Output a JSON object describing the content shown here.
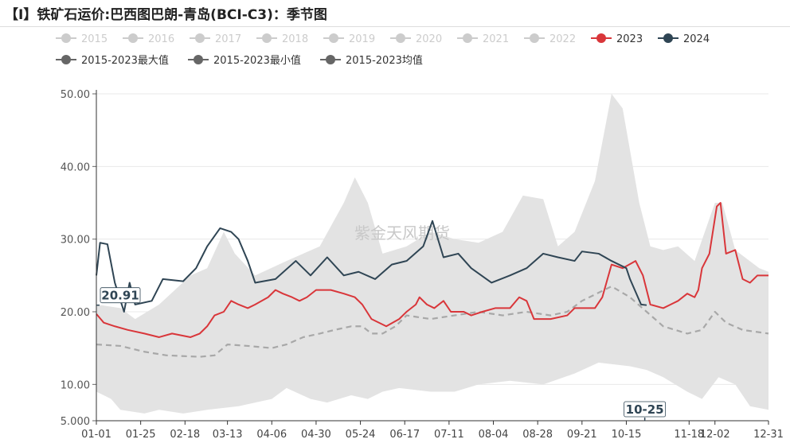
{
  "title": "【I】铁矿石运价:巴西图巴朗-青岛(BCI-C3)：季节图",
  "watermark": "紫金天风期货",
  "colors": {
    "y2023": "#d9363a",
    "y2024": "#2f4554",
    "band": "#e3e3e3",
    "avg": "#a8a8a8",
    "disabled": "#cccccc",
    "stat": "#666666",
    "axis": "#333333",
    "grid": "#e8e8e8"
  },
  "legend": [
    {
      "label": "2015",
      "active": false
    },
    {
      "label": "2016",
      "active": false
    },
    {
      "label": "2017",
      "active": false
    },
    {
      "label": "2018",
      "active": false
    },
    {
      "label": "2019",
      "active": false
    },
    {
      "label": "2020",
      "active": false
    },
    {
      "label": "2021",
      "active": false
    },
    {
      "label": "2022",
      "active": false
    },
    {
      "label": "2023",
      "active": true,
      "color": "#d9363a"
    },
    {
      "label": "2024",
      "active": true,
      "color": "#2f4554"
    },
    {
      "label": "2015-2023最大值",
      "active": true,
      "color": "#666666"
    },
    {
      "label": "2015-2023最小值",
      "active": true,
      "color": "#666666"
    },
    {
      "label": "2015-2023均值",
      "active": true,
      "color": "#666666"
    }
  ],
  "chart_data": {
    "type": "line",
    "title": "【I】铁矿石运价:巴西图巴朗-青岛(BCI-C3)：季节图",
    "ylim": [
      5,
      50
    ],
    "yticks": [
      "5.000",
      "10.00",
      "20.00",
      "30.00",
      "40.00",
      "50.00"
    ],
    "yticks_values": [
      5,
      10,
      20,
      30,
      40,
      50
    ],
    "xticks": [
      "01-01",
      "01-25",
      "02-18",
      "03-13",
      "04-06",
      "04-30",
      "05-24",
      "06-17",
      "07-11",
      "08-04",
      "08-28",
      "09-21",
      "10-15",
      "11-18",
      "12-02",
      "12-31"
    ],
    "highlight_x": "10-25",
    "highlight_y": "20.91",
    "grid": true,
    "legend_position": "top",
    "series": [
      {
        "name": "2015-2023最大值",
        "type": "band-upper",
        "points": [
          [
            "01-01",
            21
          ],
          [
            "01-14",
            20.5
          ],
          [
            "01-22",
            19
          ],
          [
            "02-04",
            21
          ],
          [
            "02-21",
            25
          ],
          [
            "03-02",
            26
          ],
          [
            "03-11",
            31
          ],
          [
            "03-17",
            28
          ],
          [
            "03-28",
            25
          ],
          [
            "04-14",
            27
          ],
          [
            "05-02",
            29
          ],
          [
            "05-15",
            35
          ],
          [
            "05-21",
            38.5
          ],
          [
            "05-28",
            35
          ],
          [
            "06-05",
            28
          ],
          [
            "06-18",
            29
          ],
          [
            "07-01",
            31
          ],
          [
            "07-14",
            30
          ],
          [
            "07-27",
            29.5
          ],
          [
            "08-09",
            31
          ],
          [
            "08-20",
            36
          ],
          [
            "08-31",
            35.5
          ],
          [
            "09-08",
            29
          ],
          [
            "09-17",
            31
          ],
          [
            "09-28",
            38
          ],
          [
            "10-07",
            50
          ],
          [
            "10-13",
            48
          ],
          [
            "10-22",
            35
          ],
          [
            "10-28",
            29
          ],
          [
            "11-04",
            28.5
          ],
          [
            "11-12",
            29
          ],
          [
            "11-21",
            27
          ],
          [
            "12-02",
            35
          ],
          [
            "12-06",
            35
          ],
          [
            "12-13",
            28.5
          ],
          [
            "12-26",
            26
          ],
          [
            "12-31",
            25.5
          ]
        ]
      },
      {
        "name": "2015-2023最小值",
        "type": "band-lower",
        "points": [
          [
            "01-01",
            9
          ],
          [
            "01-09",
            8
          ],
          [
            "01-14",
            6.5
          ],
          [
            "01-27",
            6
          ],
          [
            "02-04",
            6.5
          ],
          [
            "02-17",
            6
          ],
          [
            "03-02",
            6.5
          ],
          [
            "03-19",
            7
          ],
          [
            "04-06",
            8
          ],
          [
            "04-14",
            9.5
          ],
          [
            "04-27",
            8
          ],
          [
            "05-06",
            7.5
          ],
          [
            "05-19",
            8.5
          ],
          [
            "05-28",
            8
          ],
          [
            "06-05",
            9
          ],
          [
            "06-14",
            9.5
          ],
          [
            "07-01",
            9
          ],
          [
            "07-14",
            9
          ],
          [
            "07-27",
            10
          ],
          [
            "08-13",
            10.5
          ],
          [
            "08-31",
            10
          ],
          [
            "09-17",
            11.5
          ],
          [
            "09-30",
            13
          ],
          [
            "10-17",
            12.5
          ],
          [
            "10-26",
            12
          ],
          [
            "11-04",
            11
          ],
          [
            "11-17",
            9
          ],
          [
            "11-25",
            8
          ],
          [
            "12-04",
            11
          ],
          [
            "12-13",
            10
          ],
          [
            "12-21",
            7
          ],
          [
            "12-31",
            6.5
          ]
        ]
      },
      {
        "name": "2015-2023均值",
        "type": "dashed",
        "points": [
          [
            "01-01",
            15.5
          ],
          [
            "01-14",
            15.3
          ],
          [
            "01-27",
            14.5
          ],
          [
            "02-08",
            14
          ],
          [
            "02-26",
            13.8
          ],
          [
            "03-06",
            14
          ],
          [
            "03-13",
            15.5
          ],
          [
            "03-24",
            15.3
          ],
          [
            "04-06",
            15
          ],
          [
            "04-14",
            15.5
          ],
          [
            "04-23",
            16.5
          ],
          [
            "05-02",
            17
          ],
          [
            "05-10",
            17.5
          ],
          [
            "05-19",
            18
          ],
          [
            "05-25",
            18
          ],
          [
            "05-30",
            17
          ],
          [
            "06-05",
            17
          ],
          [
            "06-12",
            18
          ],
          [
            "06-18",
            19.5
          ],
          [
            "07-01",
            19
          ],
          [
            "07-14",
            19.5
          ],
          [
            "07-27",
            20
          ],
          [
            "08-09",
            19.5
          ],
          [
            "08-22",
            20
          ],
          [
            "09-04",
            19.5
          ],
          [
            "09-13",
            20
          ],
          [
            "09-21",
            21.5
          ],
          [
            "10-07",
            23.5
          ],
          [
            "10-17",
            22
          ],
          [
            "10-26",
            20
          ],
          [
            "11-04",
            18
          ],
          [
            "11-17",
            17
          ],
          [
            "11-25",
            17.5
          ],
          [
            "12-02",
            20
          ],
          [
            "12-08",
            18.5
          ],
          [
            "12-17",
            17.5
          ],
          [
            "12-31",
            17
          ]
        ]
      },
      {
        "name": "2023",
        "points": [
          [
            "01-01",
            19.7
          ],
          [
            "01-05",
            18.5
          ],
          [
            "01-11",
            18
          ],
          [
            "01-18",
            17.5
          ],
          [
            "01-27",
            17
          ],
          [
            "02-04",
            16.5
          ],
          [
            "02-11",
            17
          ],
          [
            "02-21",
            16.5
          ],
          [
            "02-26",
            17
          ],
          [
            "03-02",
            18
          ],
          [
            "03-06",
            19.5
          ],
          [
            "03-11",
            20
          ],
          [
            "03-15",
            21.5
          ],
          [
            "03-19",
            21
          ],
          [
            "03-24",
            20.5
          ],
          [
            "03-28",
            21
          ],
          [
            "04-04",
            22
          ],
          [
            "04-08",
            23
          ],
          [
            "04-12",
            22.5
          ],
          [
            "04-17",
            22
          ],
          [
            "04-21",
            21.5
          ],
          [
            "04-25",
            22
          ],
          [
            "04-30",
            23
          ],
          [
            "05-08",
            23
          ],
          [
            "05-15",
            22.5
          ],
          [
            "05-21",
            22
          ],
          [
            "05-25",
            21
          ],
          [
            "05-30",
            19
          ],
          [
            "06-07",
            18
          ],
          [
            "06-14",
            19
          ],
          [
            "06-18",
            20
          ],
          [
            "06-23",
            21
          ],
          [
            "06-25",
            22
          ],
          [
            "06-29",
            21
          ],
          [
            "07-03",
            20.5
          ],
          [
            "07-08",
            21.5
          ],
          [
            "07-12",
            20
          ],
          [
            "07-19",
            20
          ],
          [
            "07-23",
            19.5
          ],
          [
            "07-29",
            20
          ],
          [
            "08-05",
            20.5
          ],
          [
            "08-13",
            20.5
          ],
          [
            "08-18",
            22
          ],
          [
            "08-22",
            21.5
          ],
          [
            "08-26",
            19
          ],
          [
            "09-04",
            19
          ],
          [
            "09-13",
            19.5
          ],
          [
            "09-17",
            20.5
          ],
          [
            "09-28",
            20.5
          ],
          [
            "10-02",
            22
          ],
          [
            "10-07",
            26.5
          ],
          [
            "10-13",
            26
          ],
          [
            "10-20",
            27
          ],
          [
            "10-24",
            25
          ],
          [
            "10-28",
            21
          ],
          [
            "11-04",
            20.5
          ],
          [
            "11-08",
            21
          ],
          [
            "11-12",
            21.5
          ],
          [
            "11-17",
            22.5
          ],
          [
            "11-21",
            22
          ],
          [
            "11-23",
            23
          ],
          [
            "11-25",
            26
          ],
          [
            "11-29",
            28
          ],
          [
            "12-03",
            34.5
          ],
          [
            "12-05",
            35
          ],
          [
            "12-08",
            28
          ],
          [
            "12-13",
            28.5
          ],
          [
            "12-17",
            24.5
          ],
          [
            "12-21",
            24
          ],
          [
            "12-25",
            25
          ],
          [
            "12-31",
            25
          ]
        ]
      },
      {
        "name": "2024",
        "points": [
          [
            "01-01",
            25
          ],
          [
            "01-03",
            29.5
          ],
          [
            "01-07",
            29.3
          ],
          [
            "01-11",
            24
          ],
          [
            "01-16",
            20
          ],
          [
            "01-19",
            24
          ],
          [
            "01-22",
            21
          ],
          [
            "01-31",
            21.5
          ],
          [
            "02-06",
            24.5
          ],
          [
            "02-17",
            24.2
          ],
          [
            "02-24",
            26
          ],
          [
            "03-02",
            29
          ],
          [
            "03-09",
            31.5
          ],
          [
            "03-15",
            31
          ],
          [
            "03-19",
            30
          ],
          [
            "03-24",
            27
          ],
          [
            "03-28",
            24
          ],
          [
            "04-08",
            24.5
          ],
          [
            "04-19",
            27
          ],
          [
            "04-27",
            25
          ],
          [
            "05-06",
            27.5
          ],
          [
            "05-15",
            25
          ],
          [
            "05-23",
            25.5
          ],
          [
            "06-01",
            24.5
          ],
          [
            "06-10",
            26.5
          ],
          [
            "06-18",
            27
          ],
          [
            "06-27",
            29
          ],
          [
            "07-02",
            32.5
          ],
          [
            "07-08",
            27.5
          ],
          [
            "07-16",
            28
          ],
          [
            "07-23",
            26
          ],
          [
            "08-03",
            24
          ],
          [
            "08-13",
            25
          ],
          [
            "08-22",
            26
          ],
          [
            "08-31",
            28
          ],
          [
            "09-08",
            27.5
          ],
          [
            "09-17",
            27
          ],
          [
            "09-21",
            28.3
          ],
          [
            "09-30",
            28
          ],
          [
            "10-07",
            27
          ],
          [
            "10-15",
            26
          ],
          [
            "10-17",
            24.5
          ],
          [
            "10-23",
            21
          ],
          [
            "10-26",
            20.91
          ]
        ]
      }
    ]
  }
}
